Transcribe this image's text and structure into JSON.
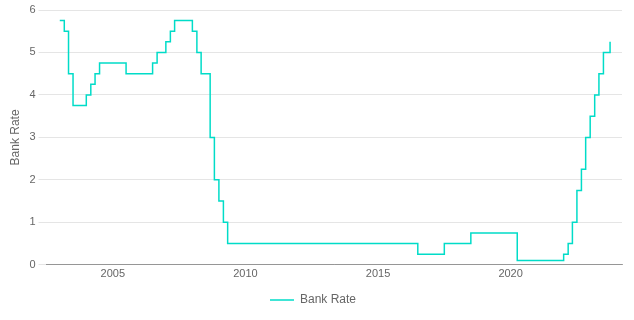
{
  "chart_data": {
    "type": "step",
    "y_label": "Bank Rate",
    "x": [
      2003.0,
      2003.17,
      2003.33,
      2003.5,
      2003.67,
      2003.83,
      2004.0,
      2004.17,
      2004.33,
      2004.5,
      2004.67,
      2004.83,
      2005.0,
      2005.17,
      2005.33,
      2005.5,
      2005.67,
      2005.83,
      2006.0,
      2006.17,
      2006.33,
      2006.5,
      2006.67,
      2006.83,
      2007.0,
      2007.17,
      2007.33,
      2007.5,
      2007.67,
      2007.83,
      2008.0,
      2008.17,
      2008.33,
      2008.5,
      2008.67,
      2008.83,
      2009.0,
      2009.17,
      2009.33,
      2009.5,
      2010.0,
      2011.0,
      2012.0,
      2013.0,
      2014.0,
      2015.0,
      2015.5,
      2016.0,
      2016.5,
      2017.0,
      2017.5,
      2017.83,
      2018.0,
      2018.5,
      2018.83,
      2019.0,
      2019.5,
      2020.0,
      2020.25,
      2020.5,
      2021.0,
      2021.75,
      2022.0,
      2022.17,
      2022.33,
      2022.5,
      2022.67,
      2022.83,
      2023.0,
      2023.17,
      2023.33,
      2023.5,
      2023.75
    ],
    "series": [
      {
        "name": "Bank Rate",
        "color": "#00dcc8",
        "values": [
          5.75,
          5.5,
          4.5,
          3.75,
          3.75,
          3.75,
          4.0,
          4.25,
          4.5,
          4.75,
          4.75,
          4.75,
          4.75,
          4.75,
          4.75,
          4.5,
          4.5,
          4.5,
          4.5,
          4.5,
          4.5,
          4.75,
          5.0,
          5.0,
          5.25,
          5.5,
          5.75,
          5.75,
          5.75,
          5.75,
          5.5,
          5.0,
          4.5,
          4.5,
          3.0,
          2.0,
          1.5,
          1.0,
          0.5,
          0.5,
          0.5,
          0.5,
          0.5,
          0.5,
          0.5,
          0.5,
          0.5,
          0.5,
          0.25,
          0.25,
          0.5,
          0.5,
          0.5,
          0.75,
          0.75,
          0.75,
          0.75,
          0.75,
          0.1,
          0.1,
          0.1,
          0.1,
          0.25,
          0.5,
          1.0,
          1.75,
          2.25,
          3.0,
          3.5,
          4.0,
          4.5,
          5.0,
          5.25
        ]
      }
    ],
    "xlim": [
      2002.5,
      2024.2
    ],
    "xticks": [
      2005,
      2010,
      2015,
      2020
    ],
    "ylim": [
      0,
      6
    ],
    "yticks": [
      0,
      1,
      2,
      3,
      4,
      5,
      6
    ],
    "grid": "y",
    "legend": "bottom"
  }
}
